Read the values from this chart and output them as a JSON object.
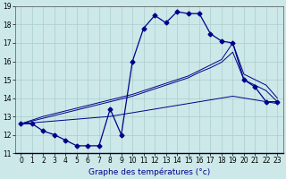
{
  "xlabel": "Graphe des températures (°c)",
  "bg_color": "#cce8e8",
  "line_color": "#00008b",
  "grid_color": "#aacece",
  "xlim": [
    -0.5,
    23.5
  ],
  "ylim": [
    11,
    19
  ],
  "xticks": [
    0,
    1,
    2,
    3,
    4,
    5,
    6,
    7,
    8,
    9,
    10,
    11,
    12,
    13,
    14,
    15,
    16,
    17,
    18,
    19,
    20,
    21,
    22,
    23
  ],
  "yticks": [
    11,
    12,
    13,
    14,
    15,
    16,
    17,
    18,
    19
  ],
  "line1_x": [
    0,
    1,
    2,
    3,
    4,
    5,
    6,
    7,
    8,
    9,
    10,
    11,
    12,
    13,
    14,
    15,
    16,
    17,
    18,
    19,
    20,
    21,
    22,
    23
  ],
  "line1_y": [
    12.6,
    12.6,
    12.2,
    12.0,
    11.7,
    11.4,
    11.4,
    11.4,
    13.4,
    12.0,
    16.0,
    17.8,
    18.5,
    18.1,
    18.7,
    18.6,
    18.6,
    17.5,
    17.1,
    17.0,
    15.0,
    14.6,
    13.8,
    13.8
  ],
  "trend1_x": [
    0,
    1,
    2,
    3,
    4,
    5,
    6,
    7,
    8,
    9,
    10,
    11,
    12,
    13,
    14,
    15,
    16,
    17,
    18,
    19,
    20,
    21,
    22,
    23
  ],
  "trend1_y": [
    12.6,
    12.8,
    13.0,
    13.15,
    13.3,
    13.45,
    13.6,
    13.75,
    13.9,
    14.05,
    14.2,
    14.4,
    14.6,
    14.8,
    15.0,
    15.2,
    15.5,
    15.8,
    16.1,
    17.0,
    15.3,
    15.0,
    14.7,
    14.0
  ],
  "trend2_x": [
    0,
    1,
    2,
    3,
    4,
    5,
    6,
    7,
    8,
    9,
    10,
    11,
    12,
    13,
    14,
    15,
    16,
    17,
    18,
    19,
    20,
    21,
    22,
    23
  ],
  "trend2_y": [
    12.6,
    12.75,
    12.9,
    13.05,
    13.2,
    13.35,
    13.5,
    13.65,
    13.8,
    13.95,
    14.1,
    14.3,
    14.5,
    14.7,
    14.9,
    15.1,
    15.4,
    15.65,
    15.95,
    16.5,
    15.0,
    14.7,
    14.4,
    13.8
  ],
  "trend3_x": [
    0,
    1,
    2,
    3,
    4,
    5,
    6,
    7,
    8,
    9,
    10,
    11,
    12,
    13,
    14,
    15,
    16,
    17,
    18,
    19,
    20,
    21,
    22,
    23
  ],
  "trend3_y": [
    12.6,
    12.65,
    12.7,
    12.75,
    12.8,
    12.85,
    12.9,
    12.95,
    13.0,
    13.1,
    13.2,
    13.3,
    13.4,
    13.5,
    13.6,
    13.7,
    13.8,
    13.9,
    14.0,
    14.1,
    14.0,
    13.9,
    13.8,
    13.7
  ],
  "tick_fontsize": 5.5,
  "xlabel_fontsize": 6.5,
  "lw_main": 0.9,
  "lw_trend": 0.7,
  "marker_size": 2.5
}
